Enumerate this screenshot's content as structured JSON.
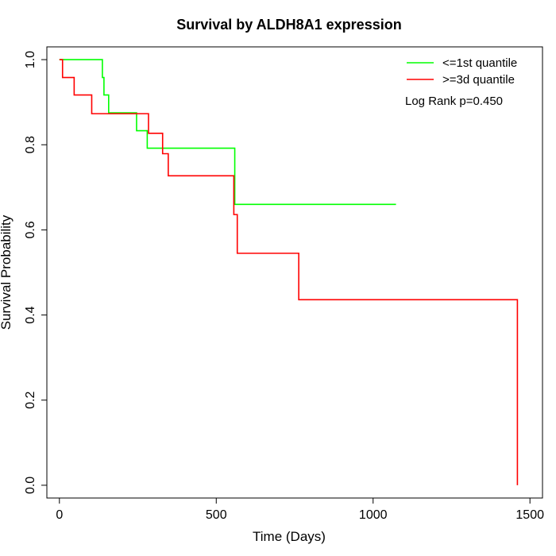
{
  "chart_data": {
    "type": "line",
    "title": "Survival by ALDH8A1 expression",
    "xlabel": "Time (Days)",
    "ylabel": "Survival Probability",
    "xlim": [
      -40,
      1540
    ],
    "ylim": [
      -0.03,
      1.03
    ],
    "x_ticks": [
      0,
      500,
      1000,
      1500
    ],
    "y_ticks": [
      0.0,
      0.2,
      0.4,
      0.6,
      0.8,
      1.0
    ],
    "x_tick_labels": [
      "0",
      "500",
      "1000",
      "1500"
    ],
    "y_tick_labels": [
      "0.0",
      "0.2",
      "0.4",
      "0.6",
      "0.8",
      "1.0"
    ],
    "grid": false,
    "legend_position": "top-right",
    "annotation": "Log Rank p=0.450",
    "series": [
      {
        "name": "<=1st quantile",
        "color": "#00ff00",
        "step": true,
        "x": [
          0,
          137,
          142,
          157,
          246,
          280,
          556,
          559,
          1073
        ],
        "y": [
          1.0,
          0.958,
          0.917,
          0.875,
          0.833,
          0.792,
          0.792,
          0.66,
          0.66
        ]
      },
      {
        "name": ">=3d quantile",
        "color": "#ff0000",
        "step": true,
        "x": [
          0,
          10,
          47,
          103,
          284,
          329,
          347,
          556,
          560,
          567,
          763,
          1460,
          1460
        ],
        "y": [
          1.0,
          0.958,
          0.917,
          0.873,
          0.827,
          0.779,
          0.727,
          0.636,
          0.636,
          0.545,
          0.436,
          0.436,
          0.0
        ]
      }
    ]
  }
}
